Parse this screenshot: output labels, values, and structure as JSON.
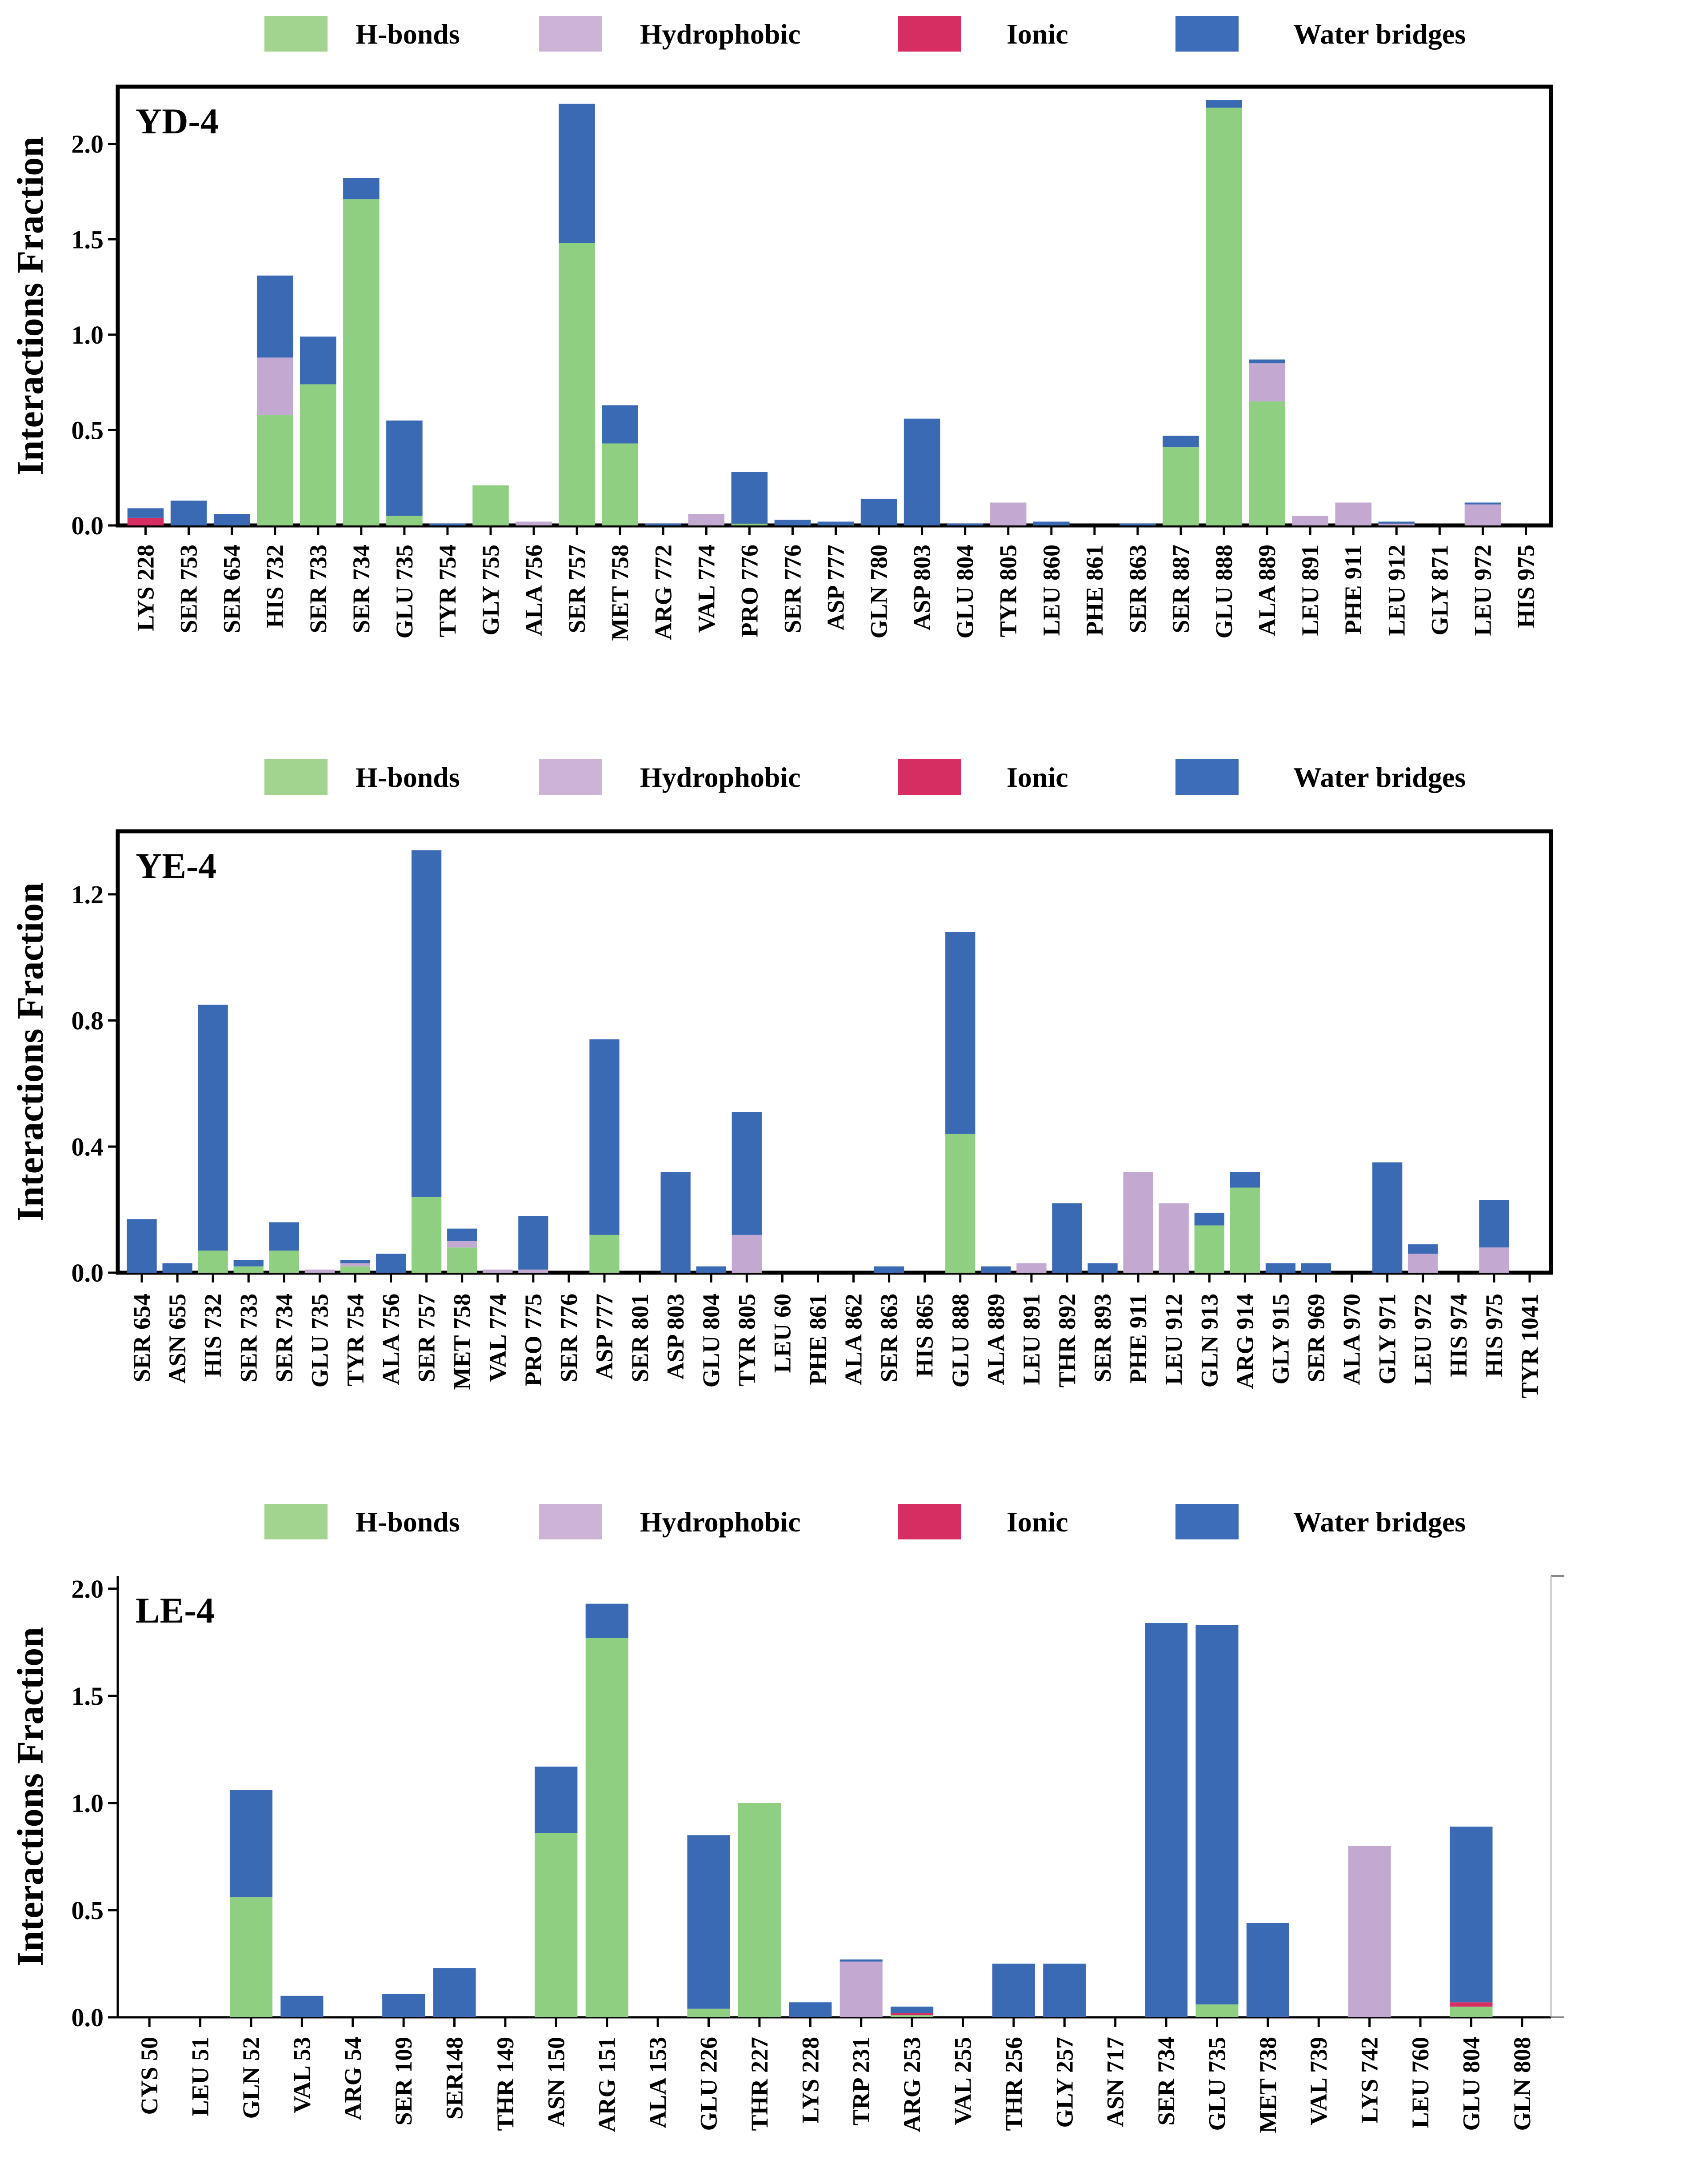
{
  "legend": [
    {
      "label": "H-bonds",
      "color": "#a3d48f"
    },
    {
      "label": "Hydrophobic",
      "color": "#cdb4d6"
    },
    {
      "label": "Ionic",
      "color": "#d62d62"
    },
    {
      "label": "Water bridges",
      "color": "#3d6db8"
    }
  ],
  "colors": {
    "hbonds": "#8fcf82",
    "hydrophobic": "#c3a9d1",
    "ionic": "#d62d62",
    "water": "#3a6ab4"
  },
  "chart_data": [
    {
      "type": "bar",
      "stacked": true,
      "title": "YD-4",
      "ylabel": "Interactions Fraction",
      "ylim": [
        0,
        2.3
      ],
      "yticks": [
        "0.0",
        "0.5",
        "1.0",
        "1.5",
        "2.0"
      ],
      "ytick_values": [
        0,
        0.5,
        1.0,
        1.5,
        2.0
      ],
      "categories": [
        "LYS 228",
        "SER 753",
        "SER 654",
        "HIS 732",
        "SER 733",
        "SER 734",
        "GLU 735",
        "TYR 754",
        "GLY 755",
        "ALA 756",
        "SER 757",
        "MET 758",
        "ARG 772",
        "VAL 774",
        "PRO 776",
        "SER 776",
        "ASP 777",
        "GLN 780",
        "ASP 803",
        "GLU 804",
        "TYR 805",
        "LEU 860",
        "PHE 861",
        "SER 863",
        "SER 887",
        "GLU 888",
        "ALA 889",
        "LEU 891",
        "PHE 911",
        "LEU 912",
        "GLY 871",
        "LEU 972",
        "HIS 975"
      ],
      "series": [
        {
          "name": "H-bonds",
          "values": [
            0,
            0,
            0,
            0.58,
            0.74,
            1.71,
            0.05,
            0,
            0.21,
            0,
            1.48,
            0.43,
            0,
            0,
            0.01,
            0,
            0,
            0,
            0,
            0,
            0,
            0,
            0,
            0,
            0.41,
            2.19,
            0.65,
            0,
            0,
            0,
            0,
            0,
            0
          ]
        },
        {
          "name": "Hydrophobic",
          "values": [
            0,
            0,
            0,
            0.3,
            0,
            0,
            0,
            0,
            0,
            0.02,
            0,
            0,
            0,
            0.06,
            0,
            0,
            0,
            0,
            0,
            0,
            0.12,
            0,
            0,
            0,
            0,
            0,
            0.2,
            0.05,
            0.12,
            0.01,
            0,
            0.11,
            0
          ]
        },
        {
          "name": "Ionic",
          "values": [
            0.04,
            0,
            0,
            0,
            0,
            0,
            0,
            0,
            0,
            0,
            0,
            0,
            0,
            0,
            0,
            0,
            0,
            0,
            0,
            0,
            0,
            0,
            0,
            0,
            0,
            0,
            0,
            0,
            0,
            0,
            0,
            0,
            0
          ]
        },
        {
          "name": "Water bridges",
          "values": [
            0.05,
            0.13,
            0.06,
            0.43,
            0.25,
            0.11,
            0.5,
            0.01,
            0,
            0,
            0.73,
            0.2,
            0.01,
            0,
            0.27,
            0.03,
            0.02,
            0.14,
            0.56,
            0.01,
            0,
            0.02,
            0,
            0.01,
            0.06,
            0.04,
            0.02,
            0,
            0,
            0.01,
            0,
            0.01,
            0
          ]
        }
      ]
    },
    {
      "type": "bar",
      "stacked": true,
      "title": "YE-4",
      "ylabel": "Interactions Fraction",
      "ylim": [
        0,
        1.4
      ],
      "yticks": [
        "0.0",
        "0.4",
        "0.8",
        "1.2"
      ],
      "ytick_values": [
        0,
        0.4,
        0.8,
        1.2
      ],
      "categories": [
        "SER 654",
        "ASN 655",
        "HIS 732",
        "SER 733",
        "SER 734",
        "GLU 735",
        "TYR 754",
        "ALA 756",
        "SER 757",
        "MET 758",
        "VAL 774",
        "PRO 775",
        "SER 776",
        "ASP 777",
        "SER 801",
        "ASP 803",
        "GLU 804",
        "TYR 805",
        "LEU 60",
        "PHE 861",
        "ALA 862",
        "SER 863",
        "HIS 865",
        "GLU 888",
        "ALA 889",
        "LEU 891",
        "THR 892",
        "SER 893",
        "PHE 911",
        "LEU 912",
        "GLN 913",
        "ARG 914",
        "GLY 915",
        "SER 969",
        "ALA 970",
        "GLY 971",
        "LEU 972",
        "HIS 974",
        "HIS 975",
        "TYR 1041"
      ],
      "series": [
        {
          "name": "H-bonds",
          "values": [
            0,
            0,
            0.07,
            0.02,
            0.07,
            0,
            0.02,
            0,
            0.24,
            0.08,
            0,
            0,
            0,
            0.12,
            0,
            0,
            0,
            0,
            0,
            0,
            0,
            0,
            0,
            0.44,
            0,
            0,
            0,
            0,
            0,
            0,
            0.15,
            0.27,
            0,
            0,
            0,
            0,
            0,
            0,
            0,
            0
          ]
        },
        {
          "name": "Hydrophobic",
          "values": [
            0,
            0,
            0,
            0,
            0,
            0.01,
            0.01,
            0,
            0,
            0.02,
            0.01,
            0.01,
            0,
            0,
            0,
            0,
            0,
            0.12,
            0,
            0,
            0,
            0,
            0,
            0,
            0,
            0.03,
            0,
            0,
            0.32,
            0.22,
            0,
            0,
            0,
            0,
            0,
            0,
            0.06,
            0,
            0.08,
            0
          ]
        },
        {
          "name": "Ionic",
          "values": [
            0,
            0,
            0,
            0,
            0,
            0,
            0,
            0,
            0,
            0,
            0,
            0,
            0,
            0,
            0,
            0,
            0,
            0,
            0,
            0,
            0,
            0,
            0,
            0,
            0,
            0,
            0,
            0,
            0,
            0,
            0,
            0,
            0,
            0,
            0,
            0,
            0,
            0,
            0,
            0
          ]
        },
        {
          "name": "Water bridges",
          "values": [
            0.17,
            0.03,
            0.78,
            0.02,
            0.09,
            0,
            0.01,
            0.06,
            1.1,
            0.04,
            0,
            0.17,
            0,
            0.62,
            0,
            0.32,
            0.02,
            0.39,
            0,
            0,
            0,
            0.02,
            0,
            0.64,
            0.02,
            0,
            0.22,
            0.03,
            0,
            0,
            0.04,
            0.05,
            0.03,
            0.03,
            0,
            0.35,
            0.03,
            0,
            0.15,
            0
          ]
        }
      ]
    },
    {
      "type": "bar",
      "stacked": true,
      "title": "LE-4",
      "ylabel": "Interactions Fraction",
      "ylim": [
        0,
        2.06
      ],
      "yticks": [
        "0.0",
        "0.5",
        "1.0",
        "1.5",
        "2.0"
      ],
      "ytick_values": [
        0,
        0.5,
        1.0,
        1.5,
        2.0
      ],
      "categories": [
        "CYS 50",
        "LEU 51",
        "GLN 52",
        "VAL 53",
        "ARG 54",
        "SER 109",
        "SER148",
        "THR 149",
        "ASN 150",
        "ARG 151",
        "ALA 153",
        "GLU 226",
        "THR 227",
        "LYS 228",
        "TRP 231",
        "ARG 253",
        "VAL 255",
        "THR 256",
        "GLY 257",
        "ASN 717",
        "SER 734",
        "GLU 735",
        "MET 738",
        "VAL 739",
        "LYS 742",
        "LEU 760",
        "GLU 804",
        "GLN 808"
      ],
      "series": [
        {
          "name": "H-bonds",
          "values": [
            0,
            0,
            0.56,
            0,
            0,
            0,
            0,
            0,
            0.86,
            1.77,
            0,
            0.04,
            1.0,
            0,
            0,
            0.01,
            0,
            0,
            0,
            0,
            0,
            0.06,
            0,
            0,
            0,
            0,
            0.05,
            0
          ]
        },
        {
          "name": "Hydrophobic",
          "values": [
            0,
            0,
            0,
            0,
            0,
            0,
            0,
            0,
            0,
            0,
            0,
            0,
            0,
            0,
            0.26,
            0,
            0,
            0,
            0,
            0,
            0,
            0,
            0,
            0,
            0.8,
            0,
            0,
            0
          ]
        },
        {
          "name": "Ionic",
          "values": [
            0,
            0,
            0,
            0,
            0,
            0,
            0,
            0,
            0,
            0,
            0,
            0,
            0,
            0,
            0,
            0.01,
            0,
            0,
            0,
            0,
            0,
            0,
            0,
            0,
            0,
            0,
            0.02,
            0
          ]
        },
        {
          "name": "Water bridges",
          "values": [
            0,
            0,
            0.5,
            0.1,
            0,
            0.11,
            0.23,
            0,
            0.31,
            0.16,
            0,
            0.81,
            0,
            0.07,
            0.01,
            0.03,
            0,
            0.25,
            0.25,
            0,
            1.84,
            1.77,
            0.44,
            0,
            0,
            0,
            0.82,
            0
          ]
        }
      ]
    }
  ]
}
